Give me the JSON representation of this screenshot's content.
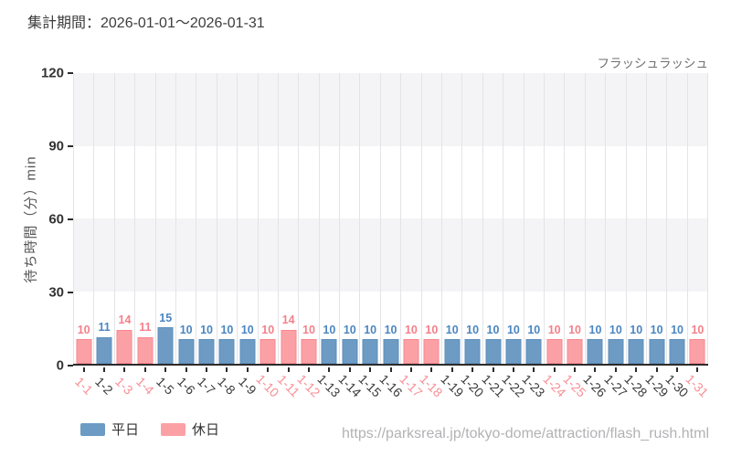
{
  "header": {
    "period_label": "集計期間：2026-01-01～2026-01-31"
  },
  "chart": {
    "attraction_label": "フラッシュラッシュ",
    "y_axis_label": "待ち時間（分）min",
    "legend": [
      {
        "label": "平日",
        "type": "weekday"
      },
      {
        "label": "休日",
        "type": "holiday"
      }
    ]
  },
  "chart_data": {
    "type": "bar",
    "title": "フラッシュラッシュ",
    "xlabel": "",
    "ylabel": "待ち時間（分）min",
    "ylim": [
      0,
      120
    ],
    "y_ticks": [
      0,
      30,
      60,
      90,
      120
    ],
    "grid": true,
    "legend_position": "bottom-left",
    "categories": [
      "1-1",
      "1-2",
      "1-3",
      "1-4",
      "1-5",
      "1-6",
      "1-7",
      "1-8",
      "1-9",
      "1-10",
      "1-11",
      "1-12",
      "1-13",
      "1-14",
      "1-15",
      "1-16",
      "1-17",
      "1-18",
      "1-19",
      "1-20",
      "1-21",
      "1-22",
      "1-23",
      "1-24",
      "1-25",
      "1-26",
      "1-27",
      "1-28",
      "1-29",
      "1-30",
      "1-31"
    ],
    "values": [
      10,
      11,
      14,
      11,
      15,
      10,
      10,
      10,
      10,
      10,
      14,
      10,
      10,
      10,
      10,
      10,
      10,
      10,
      10,
      10,
      10,
      10,
      10,
      10,
      10,
      10,
      10,
      10,
      10,
      10,
      10
    ],
    "day_types": [
      "holiday",
      "weekday",
      "holiday",
      "holiday",
      "weekday",
      "weekday",
      "weekday",
      "weekday",
      "weekday",
      "holiday",
      "holiday",
      "holiday",
      "weekday",
      "weekday",
      "weekday",
      "weekday",
      "holiday",
      "holiday",
      "weekday",
      "weekday",
      "weekday",
      "weekday",
      "weekday",
      "holiday",
      "holiday",
      "weekday",
      "weekday",
      "weekday",
      "weekday",
      "weekday",
      "holiday"
    ],
    "series_names": {
      "weekday": "平日",
      "holiday": "休日"
    },
    "colors": {
      "weekday": {
        "bar": "#6d9bc4",
        "edge": "#5d8fbc",
        "value_label": "#4b86c1",
        "tick_label": "#3a3a3a"
      },
      "holiday": {
        "bar": "#fba1a6",
        "edge": "#f9868e",
        "value_label": "#f4808a",
        "tick_label": "#f78f96"
      }
    },
    "band_colors": {
      "odd": "#f4f4f6",
      "even": "#ffffff"
    },
    "gridline_color": "#e4e4e8",
    "axis_color": "#2b2b2b"
  },
  "footer": {
    "url": "https://parksreal.jp/tokyo-dome/attraction/flash_rush.html"
  }
}
